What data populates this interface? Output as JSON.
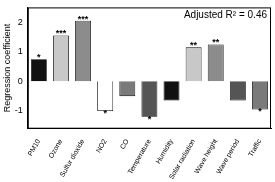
{
  "chart_data": {
    "type": "bar",
    "y_label": "Regression coefficient",
    "annotation": "Adjusted R² = 0.46",
    "categories": [
      "PM10",
      "Ozone",
      "Sulfur dioxide",
      "NO2",
      "CO",
      "Temperature",
      "Humidity",
      "Solar radiation",
      "Wave height",
      "Wave period",
      "Traffic"
    ],
    "values": [
      0.75,
      1.55,
      2.05,
      -1.0,
      -0.5,
      -1.2,
      -0.65,
      1.15,
      1.25,
      -0.65,
      -0.95
    ],
    "significance": [
      "*",
      "***",
      "***",
      "*",
      null,
      "*",
      null,
      "**",
      "**",
      null,
      "*"
    ],
    "colors": [
      "#111111",
      "#c8c8c8",
      "#8c8c8c",
      "#ffffff",
      "#7a7a7a",
      "#555555",
      "#111111",
      "#c8c8c8",
      "#8c8c8c",
      "#555555",
      "#7a7a7a"
    ],
    "ylim": [
      -1.6,
      2.5
    ],
    "yticks": [
      -1,
      0,
      1,
      2
    ],
    "grid": false
  }
}
